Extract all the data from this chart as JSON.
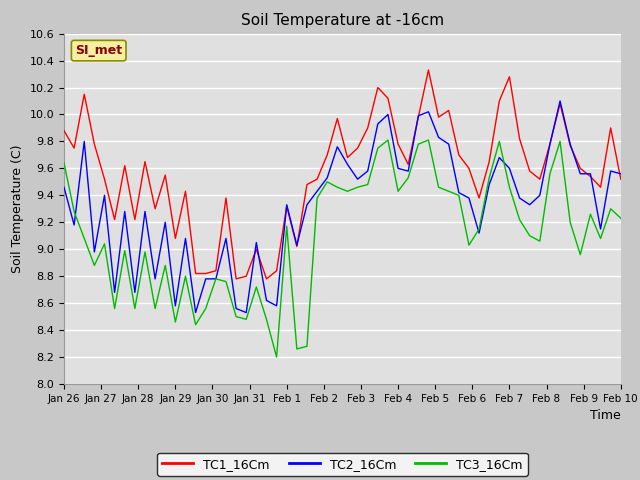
{
  "title": "Soil Temperature at -16cm",
  "xlabel": "Time",
  "ylabel": "Soil Temperature (C)",
  "ylim": [
    8.0,
    10.6
  ],
  "line_colors": [
    "#ff0000",
    "#0000ff",
    "#00bb00"
  ],
  "legend_labels": [
    "TC1_16Cm",
    "TC2_16Cm",
    "TC3_16Cm"
  ],
  "watermark_text": "SI_met",
  "x_tick_labels": [
    "Jan 26",
    "Jan 27",
    "Jan 28",
    "Jan 29",
    "Jan 30",
    "Jan 31",
    "Feb 1",
    "Feb 2",
    "Feb 3",
    "Feb 4",
    "Feb 5",
    "Feb 6",
    "Feb 7",
    "Feb 8",
    "Feb 9",
    "Feb 10"
  ],
  "TC1": [
    9.88,
    9.75,
    10.15,
    9.78,
    9.52,
    9.22,
    9.62,
    9.22,
    9.65,
    9.3,
    9.55,
    9.08,
    9.43,
    8.82,
    8.82,
    8.84,
    9.38,
    8.78,
    8.8,
    9.0,
    8.78,
    8.84,
    9.32,
    9.02,
    9.48,
    9.52,
    9.7,
    9.97,
    9.68,
    9.75,
    9.9,
    10.2,
    10.12,
    9.78,
    9.63,
    9.98,
    10.33,
    9.98,
    10.03,
    9.7,
    9.6,
    9.38,
    9.65,
    10.1,
    10.28,
    9.82,
    9.58,
    9.52,
    9.78,
    10.08,
    9.77,
    9.6,
    9.54,
    9.46,
    9.9,
    9.52
  ],
  "TC2": [
    9.46,
    9.18,
    9.8,
    8.98,
    9.4,
    8.68,
    9.28,
    8.68,
    9.28,
    8.78,
    9.2,
    8.58,
    9.08,
    8.53,
    8.78,
    8.78,
    9.08,
    8.56,
    8.53,
    9.05,
    8.62,
    8.58,
    9.33,
    9.03,
    9.33,
    9.43,
    9.53,
    9.76,
    9.63,
    9.52,
    9.58,
    9.93,
    10.0,
    9.6,
    9.58,
    9.99,
    10.02,
    9.83,
    9.78,
    9.42,
    9.38,
    9.12,
    9.48,
    9.68,
    9.6,
    9.38,
    9.33,
    9.4,
    9.78,
    10.1,
    9.78,
    9.56,
    9.56,
    9.15,
    9.58,
    9.56
  ],
  "TC3": [
    9.64,
    9.28,
    9.08,
    8.88,
    9.04,
    8.56,
    8.99,
    8.56,
    8.98,
    8.56,
    8.88,
    8.46,
    8.8,
    8.44,
    8.56,
    8.78,
    8.76,
    8.5,
    8.48,
    8.72,
    8.48,
    8.2,
    9.17,
    8.26,
    8.28,
    9.38,
    9.5,
    9.46,
    9.43,
    9.46,
    9.48,
    9.75,
    9.81,
    9.43,
    9.53,
    9.78,
    9.81,
    9.46,
    9.43,
    9.4,
    9.03,
    9.15,
    9.53,
    9.8,
    9.46,
    9.22,
    9.1,
    9.06,
    9.56,
    9.8,
    9.2,
    8.96,
    9.26,
    9.08,
    9.3,
    9.23
  ]
}
